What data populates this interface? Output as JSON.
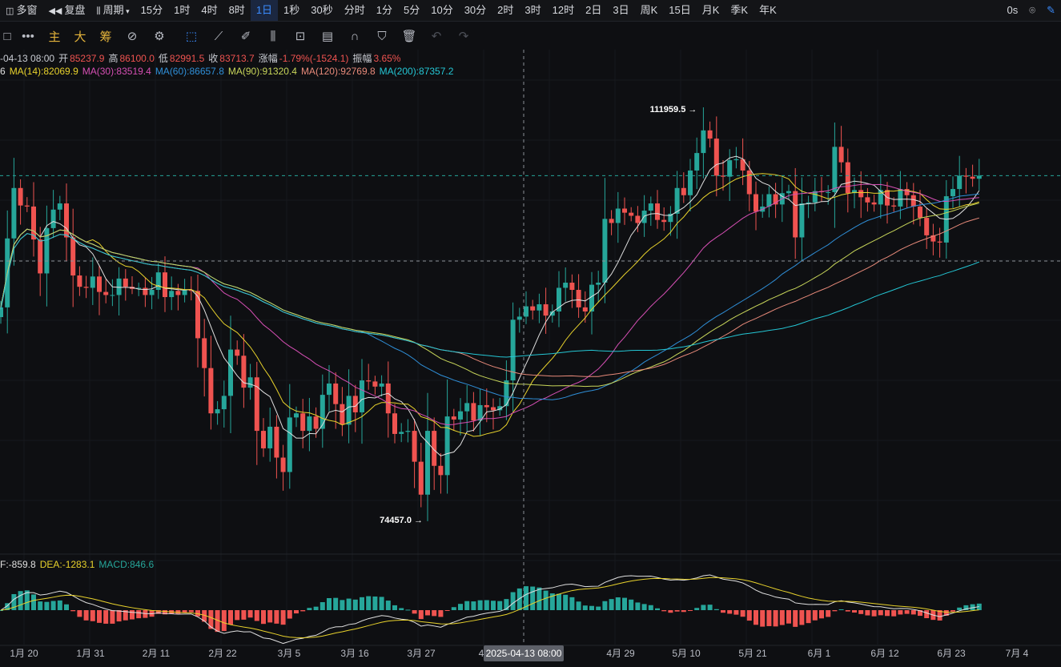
{
  "topbar": {
    "items": [
      "多窗",
      "复盘",
      "周期",
      "15分",
      "1时",
      "4时",
      "8时",
      "1日",
      "1秒",
      "30秒",
      "分时",
      "1分",
      "5分",
      "10分",
      "30分",
      "2时",
      "3时",
      "12时",
      "2日",
      "3日",
      "周K",
      "15日",
      "月K",
      "季K",
      "年K"
    ],
    "active": "1日",
    "countdown": "0s"
  },
  "toolbar": {
    "labels": [
      "主",
      "大",
      "筹"
    ]
  },
  "ohlc": {
    "date": "-04-13 08:00",
    "open_label": "开",
    "open": "85237.9",
    "high_label": "高",
    "high": "86100.0",
    "low_label": "低",
    "low": "82991.5",
    "close_label": "收",
    "close": "83713.7",
    "change_label": "涨幅",
    "change": "-1.79%(-1524.1)",
    "amplitude_label": "振幅",
    "amplitude": "3.65%"
  },
  "ma": [
    {
      "text": "6",
      "color": "#e0e0e0"
    },
    {
      "text": "MA(14):82069.9",
      "color": "#e8d22c"
    },
    {
      "text": "MA(30):83519.4",
      "color": "#d64fb4"
    },
    {
      "text": "MA(60):86657.8",
      "color": "#2f8fd8"
    },
    {
      "text": "MA(90):91320.4",
      "color": "#c8d65a"
    },
    {
      "text": "MA(120):92769.8",
      "color": "#e88a7a"
    },
    {
      "text": "MA(200):87357.2",
      "color": "#24c6d4"
    }
  ],
  "macd_info": [
    {
      "text": "F:-859.8",
      "color": "#e0e0e0"
    },
    {
      "text": "DEA:-1283.1",
      "color": "#e8d22c"
    },
    {
      "text": "MACD:846.6",
      "color": "#26a69a"
    }
  ],
  "colors": {
    "up": "#26a69a",
    "down": "#ef5350"
  },
  "chart_data": {
    "type": "candlestick",
    "annotations": {
      "high": "111959.5",
      "low": "74457.0"
    },
    "crosshair_label": "2025-04-13 08:00",
    "x_tick_labels": [
      "1月 20",
      "1月 31",
      "2月 11",
      "2月 22",
      "3月 5",
      "3月 16",
      "3月 27",
      "4",
      "4月 29",
      "5月 10",
      "5月 21",
      "6月 1",
      "6月 12",
      "6月 23",
      "7月 4"
    ],
    "close": [
      94600,
      101300,
      106200,
      104500,
      104400,
      101200,
      97900,
      102300,
      104100,
      104700,
      101400,
      97700,
      96600,
      96500,
      97600,
      96100,
      95800,
      95800,
      97400,
      96600,
      96400,
      96500,
      95800,
      96300,
      98000,
      95600,
      96200,
      95800,
      96300,
      96200,
      91600,
      88700,
      84300,
      84700,
      86000,
      90500,
      89900,
      86800,
      87800,
      82600,
      80900,
      83000,
      80000,
      78600,
      83900,
      84300,
      82600,
      84000,
      82800,
      86100,
      87200,
      85200,
      83200,
      86000,
      84400,
      87500,
      87400,
      86900,
      87200,
      84300,
      82300,
      82500,
      82600,
      79600,
      76400,
      82600,
      79200,
      78300,
      84000,
      83700,
      84500,
      85300,
      83600,
      85100,
      84900,
      84600,
      85000,
      87500,
      93400,
      93700,
      94700,
      94300,
      94900,
      93800,
      94200,
      96500,
      97000,
      96300,
      94600,
      94200,
      96800,
      97000,
      103200,
      102800,
      104200,
      103800,
      103500,
      102800,
      104000,
      104700,
      103100,
      102900,
      103700,
      106200,
      105500,
      107900,
      109600,
      111800,
      111000,
      107400,
      107300,
      108900,
      109000,
      107900,
      105600,
      103900,
      104400,
      105600,
      104600,
      105700,
      105900,
      101400,
      104700,
      104800,
      105900,
      105800,
      105800,
      110200,
      108700,
      105700,
      106000,
      105300,
      104800,
      104600,
      106000,
      104500,
      104400,
      106100,
      105500,
      104400,
      103300,
      101600,
      101000,
      100900,
      105400,
      106100,
      107400,
      107300,
      107100,
      107400
    ],
    "ylim": [
      70000,
      117000
    ]
  }
}
